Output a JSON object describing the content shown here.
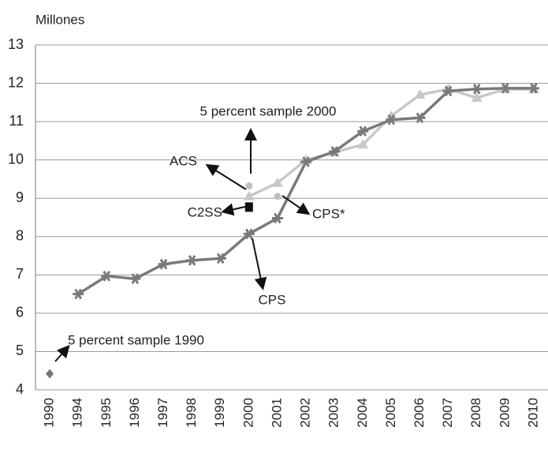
{
  "chart_data": {
    "type": "line",
    "y_label": "Millones",
    "categories": [
      "1990",
      "1994",
      "1995",
      "1996",
      "1997",
      "1998",
      "1999",
      "2000",
      "2001",
      "2002",
      "2003",
      "2004",
      "2005",
      "2006",
      "2007",
      "2008",
      "2009",
      "2010"
    ],
    "ylim": [
      4,
      13
    ],
    "yticks": [
      4,
      5,
      6,
      7,
      8,
      9,
      10,
      11,
      12,
      13
    ],
    "grid": true,
    "series": [
      {
        "name": "CPS",
        "color": "#7a7a7a",
        "marker": "star",
        "values": [
          null,
          6.5,
          6.97,
          6.9,
          7.28,
          7.38,
          7.43,
          8.07,
          8.48,
          9.95,
          10.22,
          10.75,
          11.05,
          11.1,
          11.8,
          11.85,
          11.87,
          11.87
        ]
      },
      {
        "name": "ACS",
        "color": "#c8c8c8",
        "marker": "triangle",
        "values": [
          null,
          null,
          null,
          null,
          null,
          null,
          null,
          9.05,
          9.4,
          10.0,
          10.2,
          10.4,
          11.15,
          11.7,
          11.85,
          11.62,
          11.85,
          11.85
        ]
      },
      {
        "name": "5 percent sample 2000",
        "color": "#c0c0c0",
        "marker": "circle",
        "values": [
          null,
          null,
          null,
          null,
          null,
          null,
          null,
          9.32,
          null,
          null,
          null,
          null,
          null,
          null,
          null,
          null,
          null,
          null
        ]
      },
      {
        "name": "C2SS",
        "color": "#111111",
        "marker": "square",
        "values": [
          null,
          null,
          null,
          null,
          null,
          null,
          null,
          8.77,
          null,
          null,
          null,
          null,
          null,
          null,
          null,
          null,
          null,
          null
        ]
      },
      {
        "name": "CPS*",
        "color": "#c0c0c0",
        "marker": "circle",
        "values": [
          null,
          null,
          null,
          null,
          null,
          null,
          null,
          null,
          9.05,
          null,
          null,
          null,
          null,
          null,
          null,
          null,
          null,
          null
        ]
      },
      {
        "name": "5 percent sample 1990",
        "color": "#777777",
        "marker": "diamond",
        "values": [
          4.42,
          null,
          null,
          null,
          null,
          null,
          null,
          null,
          null,
          null,
          null,
          null,
          null,
          null,
          null,
          null,
          null,
          null
        ]
      }
    ]
  }
}
